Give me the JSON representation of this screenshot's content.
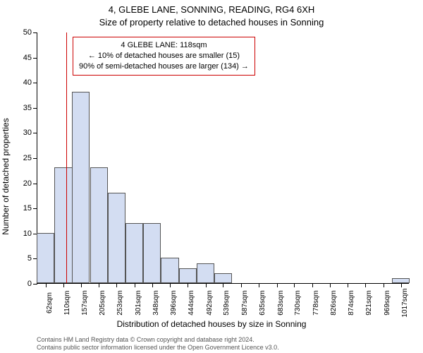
{
  "chart": {
    "type": "histogram",
    "title_main": "4, GLEBE LANE, SONNING, READING, RG4 6XH",
    "title_sub": "Size of property relative to detached houses in Sonning",
    "y_label": "Number of detached properties",
    "x_label": "Distribution of detached houses by size in Sonning",
    "background_color": "#ffffff",
    "bar_fill": "#d3ddf2",
    "bar_stroke": "#555555",
    "ref_line_color": "#cc0000",
    "ref_line_x": 118,
    "x_min": 40,
    "x_max": 1040,
    "y_min": 0,
    "y_max": 50,
    "y_tick_step": 5,
    "y_ticks": [
      0,
      5,
      10,
      15,
      20,
      25,
      30,
      35,
      40,
      45,
      50
    ],
    "x_ticks": [
      62,
      110,
      157,
      205,
      253,
      301,
      348,
      396,
      444,
      492,
      539,
      587,
      635,
      683,
      730,
      778,
      826,
      874,
      921,
      969,
      1017
    ],
    "x_tick_labels": [
      "62sqm",
      "110sqm",
      "157sqm",
      "205sqm",
      "253sqm",
      "301sqm",
      "348sqm",
      "396sqm",
      "444sqm",
      "492sqm",
      "539sqm",
      "587sqm",
      "635sqm",
      "683sqm",
      "730sqm",
      "778sqm",
      "826sqm",
      "874sqm",
      "921sqm",
      "969sqm",
      "1017sqm"
    ],
    "bin_width": 47.7,
    "bars": [
      {
        "x": 62,
        "h": 10
      },
      {
        "x": 110,
        "h": 23
      },
      {
        "x": 157,
        "h": 38
      },
      {
        "x": 205,
        "h": 23
      },
      {
        "x": 253,
        "h": 18
      },
      {
        "x": 301,
        "h": 12
      },
      {
        "x": 348,
        "h": 12
      },
      {
        "x": 396,
        "h": 5
      },
      {
        "x": 444,
        "h": 3
      },
      {
        "x": 492,
        "h": 4
      },
      {
        "x": 539,
        "h": 2
      },
      {
        "x": 587,
        "h": 0
      },
      {
        "x": 635,
        "h": 0
      },
      {
        "x": 683,
        "h": 0
      },
      {
        "x": 730,
        "h": 0
      },
      {
        "x": 778,
        "h": 0
      },
      {
        "x": 826,
        "h": 0
      },
      {
        "x": 874,
        "h": 0
      },
      {
        "x": 921,
        "h": 0
      },
      {
        "x": 969,
        "h": 0
      },
      {
        "x": 1017,
        "h": 1
      }
    ],
    "annotation": {
      "line1": "4 GLEBE LANE: 118sqm",
      "line2": "← 10% of detached houses are smaller (15)",
      "line3": "90% of semi-detached houses are larger (134) →",
      "border_color": "#cc0000"
    },
    "attribution": {
      "line1": "Contains HM Land Registry data © Crown copyright and database right 2024.",
      "line2": "Contains public sector information licensed under the Open Government Licence v3.0."
    },
    "title_fontsize": 13,
    "label_fontsize": 12,
    "tick_fontsize": 10,
    "annotation_fontsize": 11,
    "attribution_fontsize": 9
  }
}
